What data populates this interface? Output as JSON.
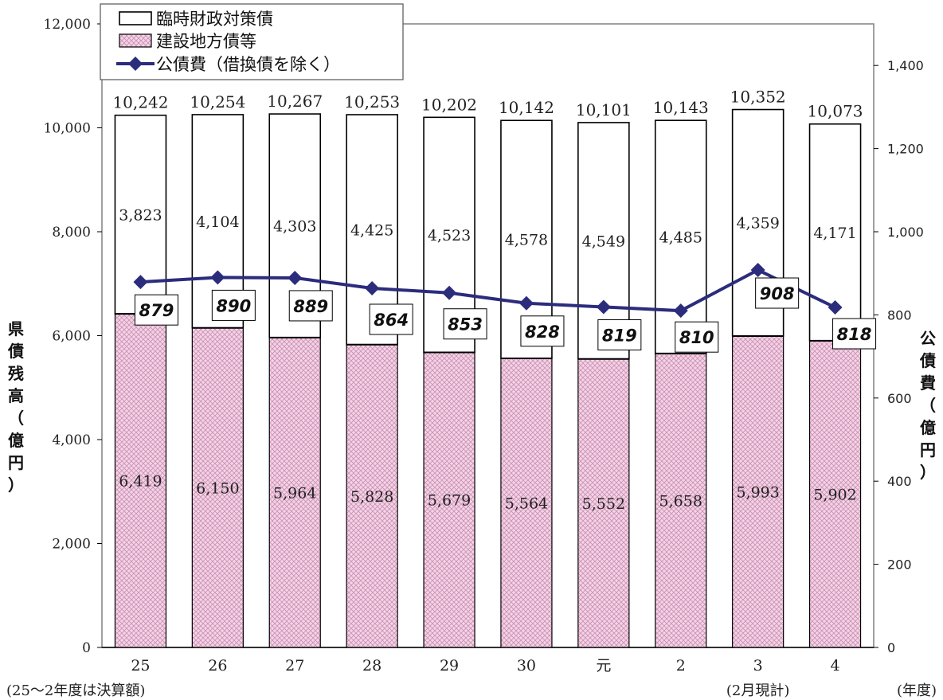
{
  "chart_data": {
    "type": "bar",
    "categories": [
      "25",
      "26",
      "27",
      "28",
      "29",
      "30",
      "元",
      "2",
      "3",
      "4"
    ],
    "category_sublabels": {
      "0": "(25～2年度は決算額)",
      "8": "(2月現計)"
    },
    "x_unit_label": "(年度)",
    "series": [
      {
        "name": "建設地方債等",
        "kind": "bar",
        "axis": "left",
        "color": "#f2c9e0",
        "values": [
          6419,
          6150,
          5964,
          5828,
          5679,
          5564,
          5552,
          5658,
          5993,
          5902
        ]
      },
      {
        "name": "臨時財政対策債",
        "kind": "bar",
        "axis": "left",
        "color": "#ffffff",
        "values": [
          3823,
          4104,
          4303,
          4425,
          4523,
          4578,
          4549,
          4485,
          4359,
          4171
        ]
      },
      {
        "name": "公債費（借換債を除く）",
        "kind": "line",
        "axis": "right",
        "color": "#2b2c7c",
        "values": [
          879,
          890,
          889,
          864,
          853,
          828,
          819,
          810,
          908,
          818
        ]
      }
    ],
    "totals": [
      10242,
      10254,
      10267,
      10253,
      10202,
      10142,
      10101,
      10143,
      10352,
      10073
    ],
    "left_axis": {
      "label": "県債残高（億円）",
      "ylim": [
        0,
        12000
      ],
      "ticks": [
        0,
        2000,
        4000,
        6000,
        8000,
        10000,
        12000
      ],
      "tick_labels": [
        "0",
        "2,000",
        "4,000",
        "6,000",
        "8,000",
        "10,000",
        "12,000"
      ]
    },
    "right_axis": {
      "label": "公債費（億円）",
      "ylim": [
        0,
        1500
      ],
      "ticks": [
        0,
        200,
        400,
        600,
        800,
        1000,
        1200,
        1400
      ],
      "tick_labels": [
        "0",
        "200",
        "400",
        "600",
        "800",
        "1,000",
        "1,200",
        "1,400"
      ]
    },
    "legend": {
      "placement": "top-left",
      "entries": [
        "臨時財政対策債",
        "建設地方債等",
        "公債費（借換債を除く）"
      ]
    }
  }
}
